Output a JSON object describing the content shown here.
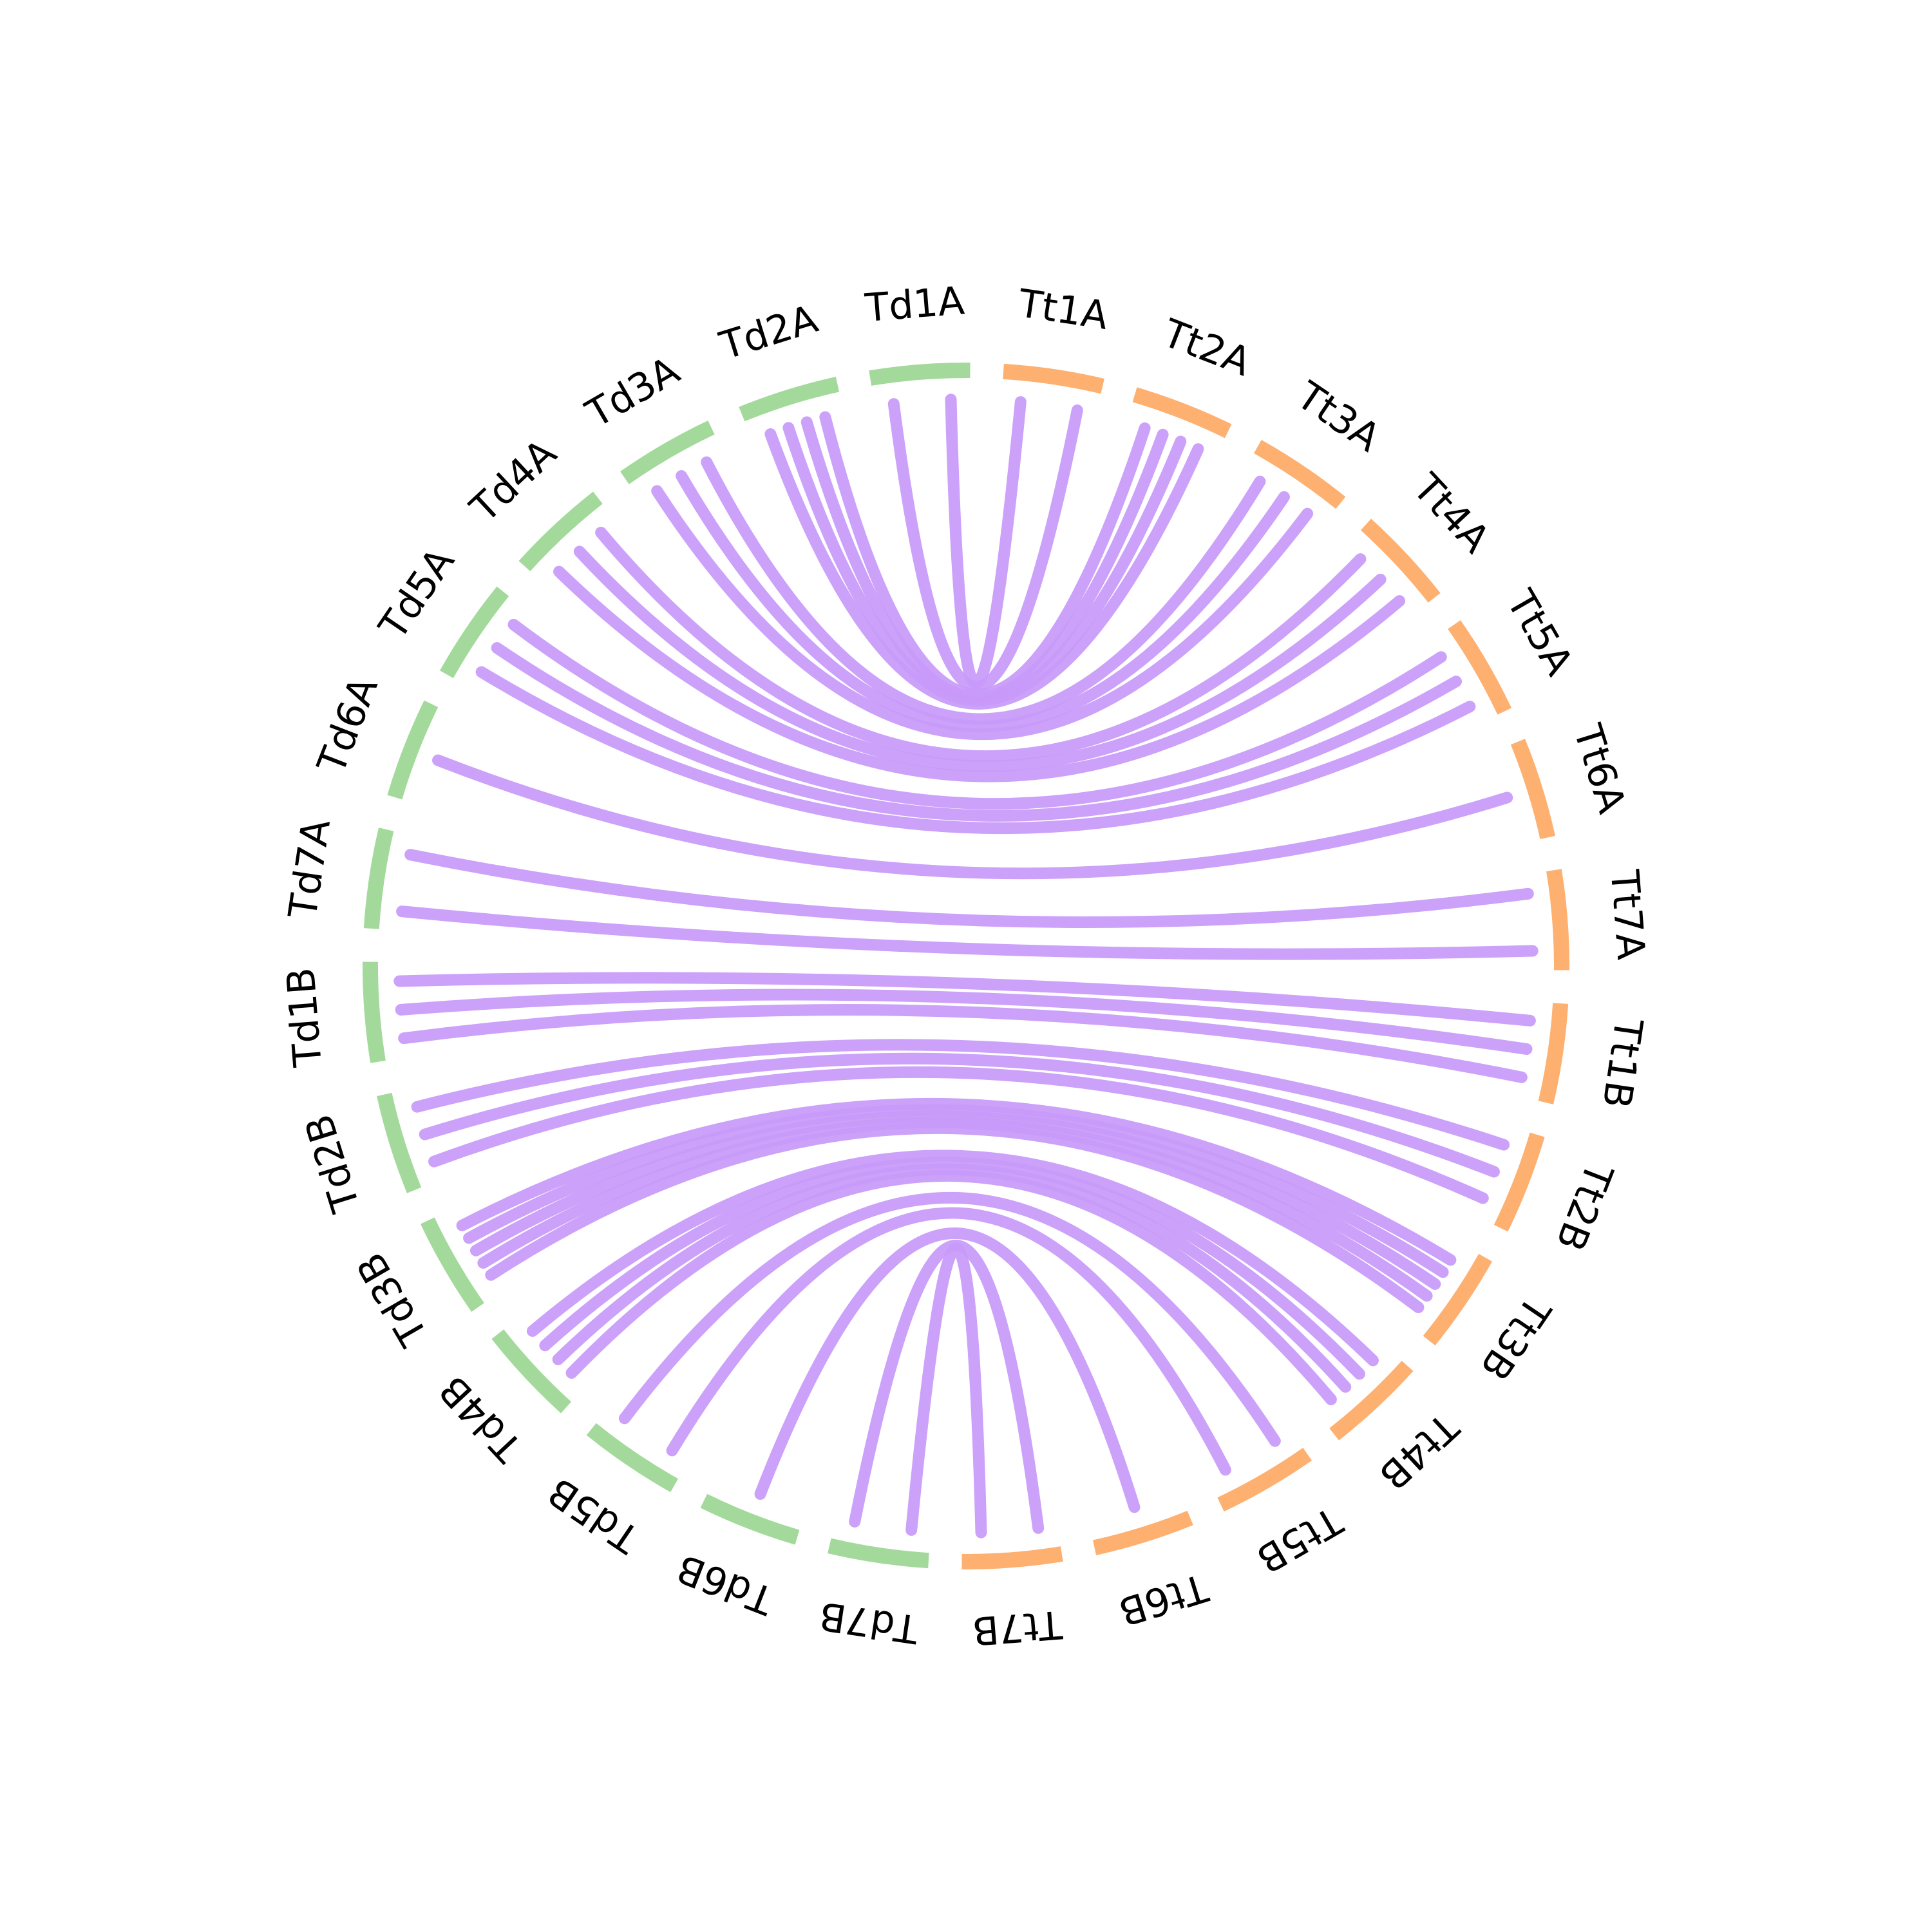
{
  "colors": {
    "td": "#a3d99b",
    "tt": "#fdb06f",
    "link": "#c899f9",
    "text": "#000000"
  },
  "segments": [
    {
      "label": "Td1A",
      "group": "td"
    },
    {
      "label": "Td2A",
      "group": "td"
    },
    {
      "label": "Td3A",
      "group": "td"
    },
    {
      "label": "Td4A",
      "group": "td"
    },
    {
      "label": "Td5A",
      "group": "td"
    },
    {
      "label": "Td6A",
      "group": "td"
    },
    {
      "label": "Td7A",
      "group": "td"
    },
    {
      "label": "Td1B",
      "group": "td"
    },
    {
      "label": "Td2B",
      "group": "td"
    },
    {
      "label": "Td3B",
      "group": "td"
    },
    {
      "label": "Td4B",
      "group": "td"
    },
    {
      "label": "Td5B",
      "group": "td"
    },
    {
      "label": "Td6B",
      "group": "td"
    },
    {
      "label": "Td7B",
      "group": "td"
    },
    {
      "label": "Tt7B",
      "group": "tt"
    },
    {
      "label": "Tt6B",
      "group": "tt"
    },
    {
      "label": "Tt5B",
      "group": "tt"
    },
    {
      "label": "Tt4B",
      "group": "tt"
    },
    {
      "label": "Tt3B",
      "group": "tt"
    },
    {
      "label": "Tt2B",
      "group": "tt"
    },
    {
      "label": "Tt1B",
      "group": "tt"
    },
    {
      "label": "Tt7A",
      "group": "tt"
    },
    {
      "label": "Tt6A",
      "group": "tt"
    },
    {
      "label": "Tt5A",
      "group": "tt"
    },
    {
      "label": "Tt4A",
      "group": "tt"
    },
    {
      "label": "Tt3A",
      "group": "tt"
    },
    {
      "label": "Tt2A",
      "group": "tt"
    },
    {
      "label": "Tt1A",
      "group": "tt"
    }
  ],
  "links": [
    {
      "from": "Td1A",
      "to": "Tt1A",
      "count": 2
    },
    {
      "from": "Td2A",
      "to": "Tt2A",
      "count": 4
    },
    {
      "from": "Td3A",
      "to": "Tt3A",
      "count": 3
    },
    {
      "from": "Td4A",
      "to": "Tt4A",
      "count": 3
    },
    {
      "from": "Td5A",
      "to": "Tt5A",
      "count": 3
    },
    {
      "from": "Td6A",
      "to": "Tt6A",
      "count": 1
    },
    {
      "from": "Td7A",
      "to": "Tt7A",
      "count": 2
    },
    {
      "from": "Td1B",
      "to": "Tt1B",
      "count": 3
    },
    {
      "from": "Td2B",
      "to": "Tt2B",
      "count": 3
    },
    {
      "from": "Td3B",
      "to": "Tt3B",
      "count": 5
    },
    {
      "from": "Td4B",
      "to": "Tt4B",
      "count": 4
    },
    {
      "from": "Td5B",
      "to": "Tt5B",
      "count": 2
    },
    {
      "from": "Td6B",
      "to": "Tt6B",
      "count": 1
    },
    {
      "from": "Td7B",
      "to": "Tt7B",
      "count": 2
    }
  ]
}
